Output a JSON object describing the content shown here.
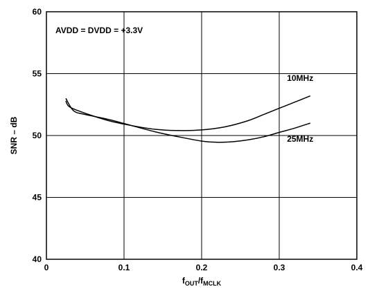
{
  "chart_data": {
    "type": "line",
    "title": "",
    "xlabel": {
      "main": "f",
      "sub1": "OUT",
      "slash": "/f",
      "sub2": "MCLK"
    },
    "ylabel": "SNR – dB",
    "xlim": [
      0,
      0.4
    ],
    "ylim": [
      40,
      60
    ],
    "x_ticks": [
      "0",
      "0.1",
      "0.2",
      "0.3",
      "0.4"
    ],
    "y_ticks": [
      "40",
      "45",
      "50",
      "55",
      "60"
    ],
    "x_tick_values": [
      0,
      0.1,
      0.2,
      0.3,
      0.4
    ],
    "y_tick_values": [
      40,
      45,
      50,
      55,
      60
    ],
    "grid": true,
    "annotation": "AVDD = DVDD = +3.3V",
    "series": [
      {
        "name": "10MHz",
        "x": [
          0.025,
          0.03,
          0.05,
          0.08,
          0.11,
          0.14,
          0.17,
          0.2,
          0.23,
          0.26,
          0.28,
          0.3,
          0.32,
          0.34
        ],
        "y": [
          52.8,
          52.3,
          51.8,
          51.2,
          50.8,
          50.5,
          50.4,
          50.45,
          50.7,
          51.2,
          51.7,
          52.2,
          52.7,
          53.2
        ]
      },
      {
        "name": "25MHz",
        "x": [
          0.025,
          0.035,
          0.05,
          0.08,
          0.11,
          0.14,
          0.17,
          0.2,
          0.22,
          0.24,
          0.26,
          0.28,
          0.3,
          0.32,
          0.34
        ],
        "y": [
          53.0,
          52.0,
          51.7,
          51.3,
          50.8,
          50.3,
          49.9,
          49.55,
          49.45,
          49.5,
          49.65,
          49.9,
          50.25,
          50.6,
          51.0
        ]
      }
    ],
    "series_labels": [
      {
        "text": "10MHz",
        "x": 0.31,
        "y": 54.4
      },
      {
        "text": "25MHz",
        "x": 0.31,
        "y": 49.5
      }
    ]
  }
}
